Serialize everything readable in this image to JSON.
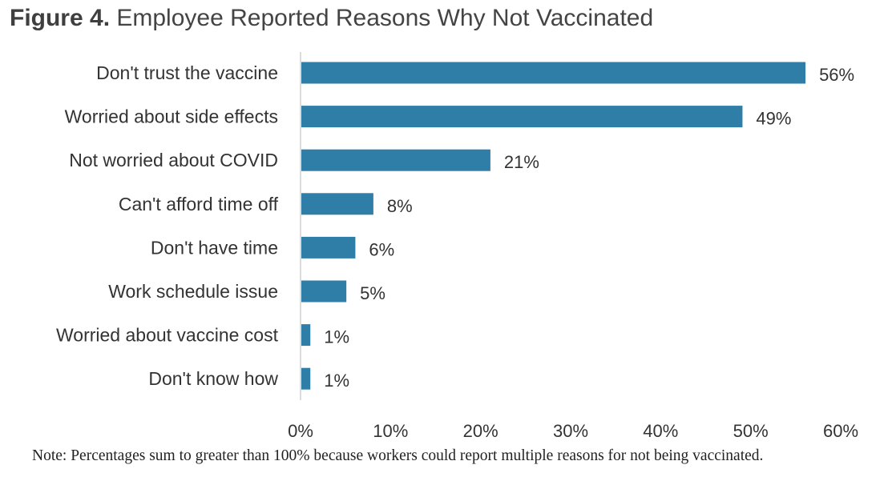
{
  "figure": {
    "label": "Figure 4.",
    "title": "Employee Reported Reasons Why Not Vaccinated"
  },
  "chart_data": {
    "type": "bar",
    "orientation": "horizontal",
    "title": "Employee Reported Reasons Why Not Vaccinated",
    "categories": [
      "Don't trust the vaccine",
      "Worried about side effects",
      "Not worried about COVID",
      "Can't afford time off",
      "Don't have time",
      "Work schedule issue",
      "Worried about vaccine cost",
      "Don't know how"
    ],
    "values": [
      56,
      49,
      21,
      8,
      6,
      5,
      1,
      1
    ],
    "value_labels": [
      "56%",
      "49%",
      "21%",
      "8%",
      "6%",
      "5%",
      "1%",
      "1%"
    ],
    "xlim": [
      0,
      60
    ],
    "xticks": [
      0,
      10,
      20,
      30,
      40,
      50,
      60
    ],
    "xtick_labels": [
      "0%",
      "10%",
      "20%",
      "30%",
      "40%",
      "50%",
      "60%"
    ],
    "xlabel": "",
    "ylabel": "",
    "grid": false,
    "colors": {
      "bar": "#2e7ea8",
      "axis": "#d0d0d0",
      "text": "#333333"
    }
  },
  "note": "Note: Percentages sum to greater than 100% because workers could report multiple reasons for not being vaccinated."
}
